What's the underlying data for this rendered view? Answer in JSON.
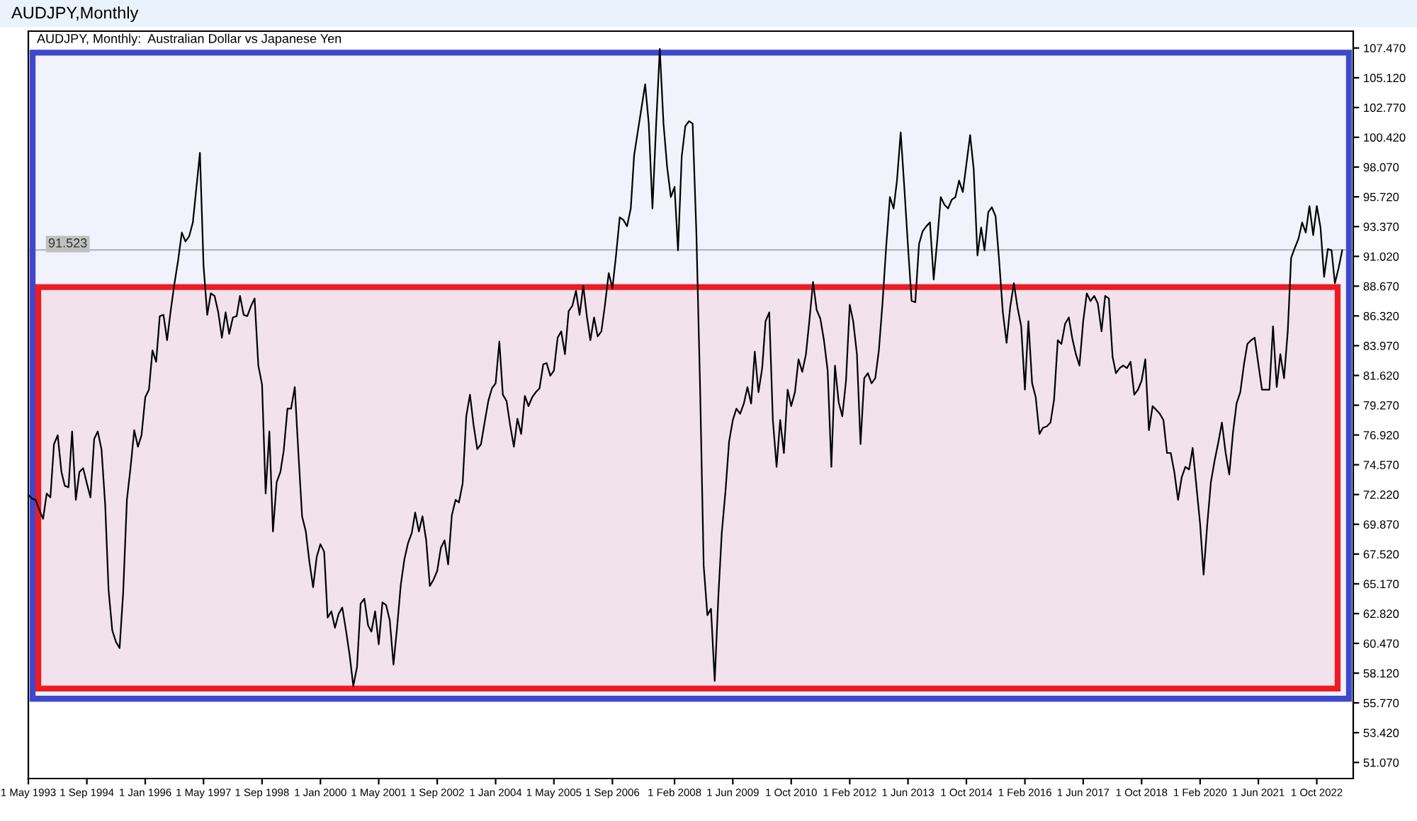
{
  "chart_data": {
    "type": "line",
    "title": "AUDJPY,Monthly",
    "subtitle": "AUDJPY, Monthly:  Australian Dollar vs Japanese Yen",
    "x": [
      "1993-05",
      "1993-06",
      "1993-07",
      "1993-08",
      "1993-09",
      "1993-10",
      "1993-11",
      "1993-12",
      "1994-01",
      "1994-02",
      "1994-03",
      "1994-04",
      "1994-05",
      "1994-06",
      "1994-07",
      "1994-08",
      "1994-09",
      "1994-10",
      "1994-11",
      "1994-12",
      "1995-01",
      "1995-02",
      "1995-03",
      "1995-04",
      "1995-05",
      "1995-06",
      "1995-07",
      "1995-08",
      "1995-09",
      "1995-10",
      "1995-11",
      "1995-12",
      "1996-01",
      "1996-02",
      "1996-03",
      "1996-04",
      "1996-05",
      "1996-06",
      "1996-07",
      "1996-08",
      "1996-09",
      "1996-10",
      "1996-11",
      "1996-12",
      "1997-01",
      "1997-02",
      "1997-03",
      "1997-04",
      "1997-05",
      "1997-06",
      "1997-07",
      "1997-08",
      "1997-09",
      "1997-10",
      "1997-11",
      "1997-12",
      "1998-01",
      "1998-02",
      "1998-03",
      "1998-04",
      "1998-05",
      "1998-06",
      "1998-07",
      "1998-08",
      "1998-09",
      "1998-10",
      "1998-11",
      "1998-12",
      "1999-01",
      "1999-02",
      "1999-03",
      "1999-04",
      "1999-05",
      "1999-06",
      "1999-07",
      "1999-08",
      "1999-09",
      "1999-10",
      "1999-11",
      "1999-12",
      "2000-01",
      "2000-02",
      "2000-03",
      "2000-04",
      "2000-05",
      "2000-06",
      "2000-07",
      "2000-08",
      "2000-09",
      "2000-10",
      "2000-11",
      "2000-12",
      "2001-01",
      "2001-02",
      "2001-03",
      "2001-04",
      "2001-05",
      "2001-06",
      "2001-07",
      "2001-08",
      "2001-09",
      "2001-10",
      "2001-11",
      "2001-12",
      "2002-01",
      "2002-02",
      "2002-03",
      "2002-04",
      "2002-05",
      "2002-06",
      "2002-07",
      "2002-08",
      "2002-09",
      "2002-10",
      "2002-11",
      "2002-12",
      "2003-01",
      "2003-02",
      "2003-03",
      "2003-04",
      "2003-05",
      "2003-06",
      "2003-07",
      "2003-08",
      "2003-09",
      "2003-10",
      "2003-11",
      "2003-12",
      "2004-01",
      "2004-02",
      "2004-03",
      "2004-04",
      "2004-05",
      "2004-06",
      "2004-07",
      "2004-08",
      "2004-09",
      "2004-10",
      "2004-11",
      "2004-12",
      "2005-01",
      "2005-02",
      "2005-03",
      "2005-04",
      "2005-05",
      "2005-06",
      "2005-07",
      "2005-08",
      "2005-09",
      "2005-10",
      "2005-11",
      "2005-12",
      "2006-01",
      "2006-02",
      "2006-03",
      "2006-04",
      "2006-05",
      "2006-06",
      "2006-07",
      "2006-08",
      "2006-09",
      "2006-10",
      "2006-11",
      "2006-12",
      "2007-01",
      "2007-02",
      "2007-03",
      "2007-04",
      "2007-06",
      "2007-07",
      "2007-08",
      "2007-09",
      "2007-10",
      "2007-11",
      "2007-12",
      "2008-01",
      "2008-02",
      "2008-03",
      "2008-04",
      "2008-05",
      "2008-06",
      "2008-07",
      "2008-08",
      "2008-09",
      "2008-10",
      "2008-11",
      "2008-12",
      "2009-01",
      "2009-02",
      "2009-03",
      "2009-04",
      "2009-05",
      "2009-06",
      "2009-07",
      "2009-08",
      "2009-09",
      "2009-10",
      "2009-11",
      "2009-12",
      "2010-01",
      "2010-02",
      "2010-03",
      "2010-04",
      "2010-05",
      "2010-06",
      "2010-07",
      "2010-08",
      "2010-09",
      "2010-10",
      "2010-11",
      "2010-12",
      "2011-01",
      "2011-02",
      "2011-03",
      "2011-04",
      "2011-05",
      "2011-06",
      "2011-07",
      "2011-08",
      "2011-09",
      "2011-10",
      "2011-11",
      "2011-12",
      "2012-01",
      "2012-02",
      "2012-03",
      "2012-04",
      "2012-05",
      "2012-06",
      "2012-07",
      "2012-08",
      "2012-09",
      "2012-10",
      "2012-11",
      "2012-12",
      "2013-01",
      "2013-02",
      "2013-03",
      "2013-04",
      "2013-05",
      "2013-06",
      "2013-07",
      "2013-08",
      "2013-09",
      "2013-10",
      "2013-11",
      "2013-12",
      "2014-01",
      "2014-02",
      "2014-03",
      "2014-04",
      "2014-05",
      "2014-06",
      "2014-07",
      "2014-08",
      "2014-09",
      "2014-10",
      "2014-11",
      "2014-12",
      "2015-01",
      "2015-02",
      "2015-03",
      "2015-04",
      "2015-05",
      "2015-06",
      "2015-07",
      "2015-08",
      "2015-09",
      "2015-10",
      "2015-11",
      "2015-12",
      "2016-01",
      "2016-02",
      "2016-03",
      "2016-04",
      "2016-05",
      "2016-06",
      "2016-07",
      "2016-08",
      "2016-09",
      "2016-10",
      "2016-11",
      "2016-12",
      "2017-01",
      "2017-02",
      "2017-03",
      "2017-04",
      "2017-05",
      "2017-06",
      "2017-07",
      "2017-08",
      "2017-09",
      "2017-10",
      "2017-11",
      "2017-12",
      "2018-01",
      "2018-02",
      "2018-03",
      "2018-04",
      "2018-05",
      "2018-06",
      "2018-07",
      "2018-08",
      "2018-09",
      "2018-10",
      "2018-11",
      "2018-12",
      "2019-01",
      "2019-02",
      "2019-03",
      "2019-04",
      "2019-05",
      "2019-06",
      "2019-07",
      "2019-08",
      "2019-09",
      "2019-10",
      "2019-11",
      "2019-12",
      "2020-01",
      "2020-02",
      "2020-03",
      "2020-04",
      "2020-05",
      "2020-06",
      "2020-07",
      "2020-08",
      "2020-09",
      "2020-10",
      "2020-11",
      "2020-12",
      "2021-01",
      "2021-02",
      "2021-03",
      "2021-04",
      "2021-05",
      "2021-06",
      "2021-07",
      "2021-08",
      "2021-09",
      "2021-10",
      "2021-11",
      "2021-12",
      "2022-01",
      "2022-02",
      "2022-03",
      "2022-04",
      "2022-05",
      "2022-06",
      "2022-07",
      "2022-08",
      "2022-09",
      "2022-10",
      "2022-11",
      "2022-12",
      "2023-01",
      "2023-02",
      "2023-03",
      "2023-04",
      "2023-05"
    ],
    "series": [
      {
        "color": "#000000",
        "values": [
          72.2,
          71.9,
          71.8,
          71.0,
          70.3,
          72.3,
          72.0,
          76.2,
          76.9,
          74.0,
          72.9,
          72.8,
          77.2,
          71.8,
          74.0,
          74.3,
          73.1,
          72.0,
          76.6,
          77.2,
          75.8,
          71.4,
          64.7,
          61.5,
          60.6,
          60.1,
          64.5,
          71.8,
          74.4,
          77.3,
          76.0,
          76.9,
          79.9,
          80.5,
          83.6,
          82.7,
          86.3,
          86.4,
          84.4,
          86.8,
          88.9,
          90.7,
          92.9,
          92.2,
          92.6,
          93.7,
          96.3,
          99.2,
          90.3,
          86.4,
          88.1,
          87.9,
          86.6,
          84.6,
          86.6,
          84.9,
          86.2,
          86.3,
          87.9,
          86.4,
          86.3,
          87.1,
          87.7,
          82.4,
          80.9,
          72.3,
          77.2,
          69.3,
          73.2,
          74.0,
          75.7,
          79.0,
          79.0,
          80.7,
          75.5,
          70.5,
          69.3,
          66.9,
          64.9,
          67.3,
          68.3,
          67.7,
          62.5,
          63.0,
          61.7,
          62.8,
          63.3,
          61.5,
          59.5,
          57.1,
          58.6,
          63.6,
          64.0,
          61.9,
          61.4,
          63.0,
          60.4,
          63.7,
          63.5,
          62.3,
          58.8,
          61.7,
          65.1,
          67.1,
          68.4,
          69.2,
          70.8,
          69.3,
          70.5,
          68.6,
          65.0,
          65.5,
          66.2,
          68.0,
          68.6,
          66.7,
          70.6,
          71.8,
          71.6,
          73.1,
          78.4,
          80.1,
          77.7,
          75.8,
          76.2,
          77.9,
          79.6,
          80.6,
          81.0,
          84.3,
          80.1,
          79.6,
          77.7,
          76.0,
          78.2,
          77.0,
          80.0,
          79.2,
          79.9,
          80.3,
          80.6,
          82.5,
          82.6,
          81.6,
          82.0,
          84.6,
          85.1,
          83.3,
          86.7,
          87.1,
          88.3,
          86.4,
          88.7,
          86.2,
          84.4,
          86.2,
          84.7,
          85.1,
          87.2,
          89.7,
          88.5,
          91.1,
          94.1,
          93.9,
          93.4,
          94.8,
          99.0,
          100.9,
          104.6,
          101.5,
          94.8,
          101.5,
          107.4,
          101.5,
          98.1,
          95.7,
          96.5,
          91.5,
          98.9,
          101.3,
          101.7,
          101.5,
          92.9,
          80.7,
          66.6,
          62.7,
          63.2,
          57.5,
          64.3,
          69.2,
          72.5,
          76.4,
          78.1,
          79.0,
          78.6,
          79.4,
          80.7,
          79.4,
          83.5,
          80.3,
          82.2,
          85.9,
          86.6,
          78.1,
          74.4,
          78.1,
          75.5,
          80.5,
          79.2,
          80.3,
          82.9,
          81.9,
          83.3,
          85.9,
          89.0,
          86.8,
          86.1,
          84.4,
          82.0,
          74.4,
          82.4,
          79.5,
          78.4,
          81.2,
          87.2,
          85.9,
          83.3,
          76.2,
          81.4,
          81.8,
          81.0,
          81.4,
          83.6,
          87.4,
          91.8,
          95.7,
          94.8,
          97.0,
          100.8,
          96.5,
          91.8,
          87.5,
          87.4,
          92.0,
          93.0,
          93.4,
          93.7,
          89.2,
          92.4,
          95.7,
          95.1,
          94.8,
          95.5,
          95.7,
          97.0,
          96.1,
          98.3,
          100.6,
          97.9,
          91.1,
          93.3,
          91.5,
          94.5,
          94.9,
          94.2,
          90.7,
          86.6,
          84.2,
          87.0,
          88.9,
          87.0,
          85.5,
          80.5,
          85.9,
          81.0,
          79.9,
          77.0,
          77.5,
          77.6,
          77.9,
          79.7,
          84.4,
          84.1,
          85.7,
          86.2,
          84.6,
          83.3,
          82.4,
          85.9,
          88.1,
          87.5,
          87.9,
          87.3,
          85.1,
          87.9,
          87.7,
          83.1,
          81.8,
          82.2,
          82.4,
          82.2,
          82.7,
          80.1,
          80.5,
          81.2,
          82.9,
          77.3,
          79.2,
          78.9,
          78.6,
          78.1,
          75.5,
          75.5,
          74.0,
          71.8,
          73.6,
          74.4,
          74.2,
          75.9,
          72.9,
          69.9,
          65.9,
          69.9,
          73.2,
          74.9,
          76.3,
          77.9,
          75.5,
          73.8,
          77.1,
          79.4,
          80.3,
          82.5,
          84.1,
          84.4,
          84.6,
          82.5,
          80.5,
          80.5,
          80.5,
          85.5,
          80.7,
          83.3,
          81.4,
          85.1,
          90.9,
          91.7,
          92.4,
          93.7,
          92.9,
          95.0,
          92.7,
          95.0,
          93.3,
          89.4,
          91.6,
          91.5,
          88.9,
          90.1,
          91.5
        ]
      }
    ],
    "xlim": [
      "1993-05",
      "2023-08"
    ],
    "xticks": [
      {
        "value": "1993-05",
        "label": "1 May 1993"
      },
      {
        "value": "1994-09",
        "label": "1 Sep 1994"
      },
      {
        "value": "1996-01",
        "label": "1 Jan 1996"
      },
      {
        "value": "1997-05",
        "label": "1 May 1997"
      },
      {
        "value": "1998-09",
        "label": "1 Sep 1998"
      },
      {
        "value": "2000-01",
        "label": "1 Jan 2000"
      },
      {
        "value": "2001-05",
        "label": "1 May 2001"
      },
      {
        "value": "2002-09",
        "label": "1 Sep 2002"
      },
      {
        "value": "2004-01",
        "label": "1 Jan 2004"
      },
      {
        "value": "2005-05",
        "label": "1 May 2005"
      },
      {
        "value": "2006-09",
        "label": "1 Sep 2006"
      },
      {
        "value": "2008-02",
        "label": "1 Feb 2008"
      },
      {
        "value": "2009-06",
        "label": "1 Jun 2009"
      },
      {
        "value": "2010-10",
        "label": "1 Oct 2010"
      },
      {
        "value": "2012-02",
        "label": "1 Feb 2012"
      },
      {
        "value": "2013-06",
        "label": "1 Jun 2013"
      },
      {
        "value": "2014-10",
        "label": "1 Oct 2014"
      },
      {
        "value": "2016-02",
        "label": "1 Feb 2016"
      },
      {
        "value": "2017-06",
        "label": "1 Jun 2017"
      },
      {
        "value": "2018-10",
        "label": "1 Oct 2018"
      },
      {
        "value": "2020-02",
        "label": "1 Feb 2020"
      },
      {
        "value": "2021-06",
        "label": "1 Jun 2021"
      },
      {
        "value": "2022-10",
        "label": "1 Oct 2022"
      }
    ],
    "ylim": [
      49.8,
      108.8
    ],
    "yticks": [
      {
        "value": 107.47,
        "label": "107.470"
      },
      {
        "value": 105.12,
        "label": "105.120"
      },
      {
        "value": 102.77,
        "label": "102.770"
      },
      {
        "value": 100.42,
        "label": "100.420"
      },
      {
        "value": 98.07,
        "label": "98.070"
      },
      {
        "value": 95.72,
        "label": "95.720"
      },
      {
        "value": 93.37,
        "label": "93.370"
      },
      {
        "value": 91.02,
        "label": "91.020"
      },
      {
        "value": 88.67,
        "label": "88.670"
      },
      {
        "value": 86.32,
        "label": "86.320"
      },
      {
        "value": 83.97,
        "label": "83.970"
      },
      {
        "value": 81.62,
        "label": "81.620"
      },
      {
        "value": 79.27,
        "label": "79.270"
      },
      {
        "value": 76.92,
        "label": "76.920"
      },
      {
        "value": 74.57,
        "label": "74.570"
      },
      {
        "value": 72.22,
        "label": "72.220"
      },
      {
        "value": 69.87,
        "label": "69.870"
      },
      {
        "value": 67.52,
        "label": "67.520"
      },
      {
        "value": 65.17,
        "label": "65.170"
      },
      {
        "value": 62.82,
        "label": "62.820"
      },
      {
        "value": 60.47,
        "label": "60.470"
      },
      {
        "value": 58.12,
        "label": "58.120"
      },
      {
        "value": 55.77,
        "label": "55.770"
      },
      {
        "value": 53.42,
        "label": "53.420"
      },
      {
        "value": 51.07,
        "label": "51.070"
      }
    ],
    "ref_lines": [
      {
        "axis": "y",
        "value": 91.523,
        "label": "91.523",
        "color": "#c0c0c0"
      }
    ],
    "bands": [
      {
        "axis": "y",
        "from": 56.1,
        "to": 107.1,
        "color": "#3f48cc"
      },
      {
        "axis": "y",
        "from": 56.9,
        "to": 88.6,
        "color": "#ed1c24"
      }
    ]
  }
}
